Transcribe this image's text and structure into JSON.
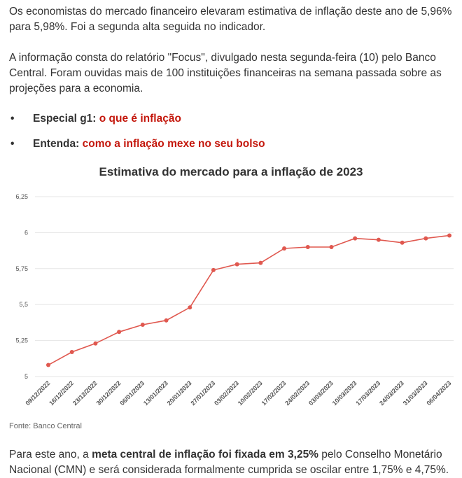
{
  "article": {
    "p1": "Os economistas do mercado financeiro elevaram estimativa de inflação deste ano de 5,96% para 5,98%. Foi a segunda alta seguida no indicador.",
    "p2": "A informação consta do relatório \"Focus\", divulgado nesta segunda-feira (10) pelo Banco Central. Foram ouvidas mais de 100 instituições financeiras na semana passada sobre as projeções para a economia.",
    "bullets": [
      {
        "prefix": "Especial g1:",
        "link": "o que é inflação"
      },
      {
        "prefix": "Entenda:",
        "link": "como a inflação mexe no seu bolso"
      }
    ],
    "source": "Fonte: Banco Central",
    "p3_before": "Para este ano, a ",
    "p3_bold": "meta central de inflação foi fixada em 3,25%",
    "p3_after": " pelo Conselho Monetário Nacional (CMN) e será considerada formalmente cumprida se oscilar entre 1,75% e 4,75%."
  },
  "colors": {
    "accent": "#c4170c",
    "line": "#e0584f",
    "grid": "#e5e5e5",
    "text": "#333333"
  },
  "chart_data": {
    "type": "line",
    "title": "Estimativa do mercado para a inflação de 2023",
    "categories": [
      "09/12/2022",
      "16/12/2022",
      "23/12/2022",
      "30/12/2022",
      "06/01/2023",
      "13/01/2023",
      "20/01/2023",
      "27/01/2023",
      "03/02/2023",
      "10/02/2023",
      "17/02/2023",
      "24/02/2023",
      "03/03/2023",
      "10/03/2023",
      "17/03/2023",
      "24/03/2023",
      "31/03/2023",
      "06/04/2023"
    ],
    "values": [
      5.08,
      5.17,
      5.23,
      5.31,
      5.36,
      5.39,
      5.48,
      5.74,
      5.78,
      5.79,
      5.89,
      5.9,
      5.9,
      5.96,
      5.95,
      5.93,
      5.96,
      5.98
    ],
    "yticks": [
      5,
      5.25,
      5.5,
      5.75,
      6,
      6.25
    ],
    "ytick_labels": [
      "5",
      "5,25",
      "5,5",
      "5,75",
      "6",
      "6,25"
    ],
    "ylim": [
      5,
      6.25
    ],
    "grid": true,
    "legend": "none",
    "xlabel": "",
    "ylabel": ""
  }
}
